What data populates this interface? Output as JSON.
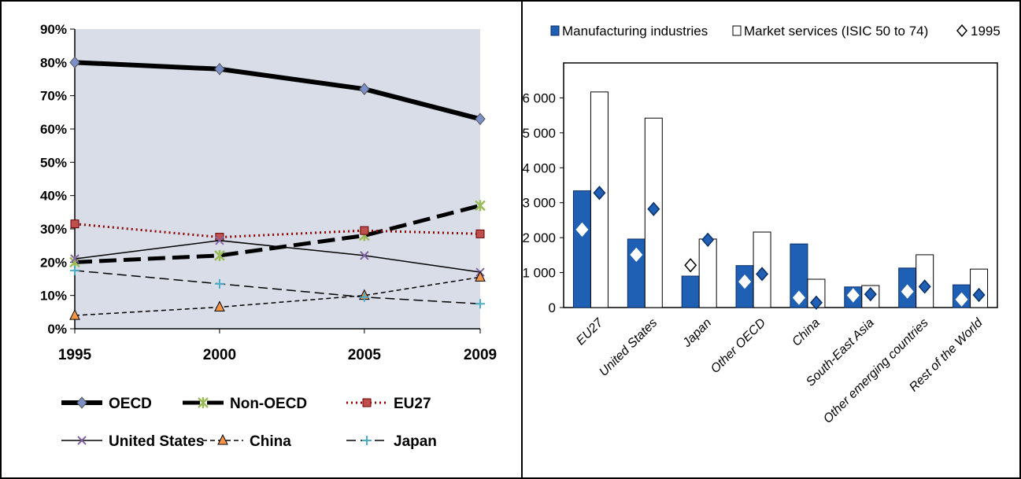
{
  "chart_data": [
    {
      "type": "line",
      "title": "",
      "x": [
        "1995",
        "2000",
        "2005",
        "2009"
      ],
      "ylim": [
        0,
        90
      ],
      "yticks": [
        "0%",
        "10%",
        "20%",
        "30%",
        "40%",
        "50%",
        "60%",
        "70%",
        "80%",
        "90%"
      ],
      "grid": false,
      "legend_position": "bottom",
      "colors": {
        "plot_bg": "#d8dde8",
        "oecd_marker": "#7b8fc8",
        "non_oecd_marker": "#9bbb59",
        "eu27_marker": "#c0504d",
        "us_marker": "#8064a2",
        "china_marker": "#f79646",
        "japan_marker": "#4bacc6"
      },
      "series": [
        {
          "name": "OECD",
          "values": [
            80,
            78,
            72,
            63
          ]
        },
        {
          "name": "Non-OECD",
          "values": [
            20,
            22,
            28,
            37
          ]
        },
        {
          "name": "EU27",
          "values": [
            31.5,
            27.5,
            29.5,
            28.5
          ]
        },
        {
          "name": "United States",
          "values": [
            21,
            26.5,
            22,
            17
          ]
        },
        {
          "name": "China",
          "values": [
            4,
            6.5,
            10,
            15.5
          ]
        },
        {
          "name": "Japan",
          "values": [
            17.5,
            13.5,
            9.5,
            7.5
          ]
        }
      ]
    },
    {
      "type": "bar",
      "title": "",
      "categories": [
        "EU27",
        "United States",
        "Japan",
        "Other OECD",
        "China",
        "South-East Asia",
        "Other emerging countries",
        "Rest of the World"
      ],
      "ylim": [
        0,
        7000
      ],
      "yticks": [
        "0",
        "1 000",
        "2 000",
        "3 000",
        "4 000",
        "5 000",
        "6 000"
      ],
      "grid": false,
      "legend_position": "top",
      "colors": {
        "manufacturing": "#1f5fb4",
        "services": "#ffffff",
        "marker": "#ffffff",
        "marker_on_bar": "#1f5fb4"
      },
      "series": [
        {
          "name": "Manufacturing industries",
          "values": [
            3340,
            1960,
            900,
            1200,
            1820,
            590,
            1130,
            650
          ]
        },
        {
          "name": "Market services (ISIC  50 to 74)",
          "values": [
            6170,
            5420,
            1960,
            2160,
            810,
            630,
            1510,
            1100
          ]
        },
        {
          "name": "1995",
          "manufacturing_1995": [
            2230,
            1510,
            1210,
            740,
            280,
            350,
            460,
            230
          ],
          "services_1995": [
            3280,
            2820,
            1940,
            960,
            140,
            380,
            600,
            360
          ]
        }
      ]
    }
  ]
}
